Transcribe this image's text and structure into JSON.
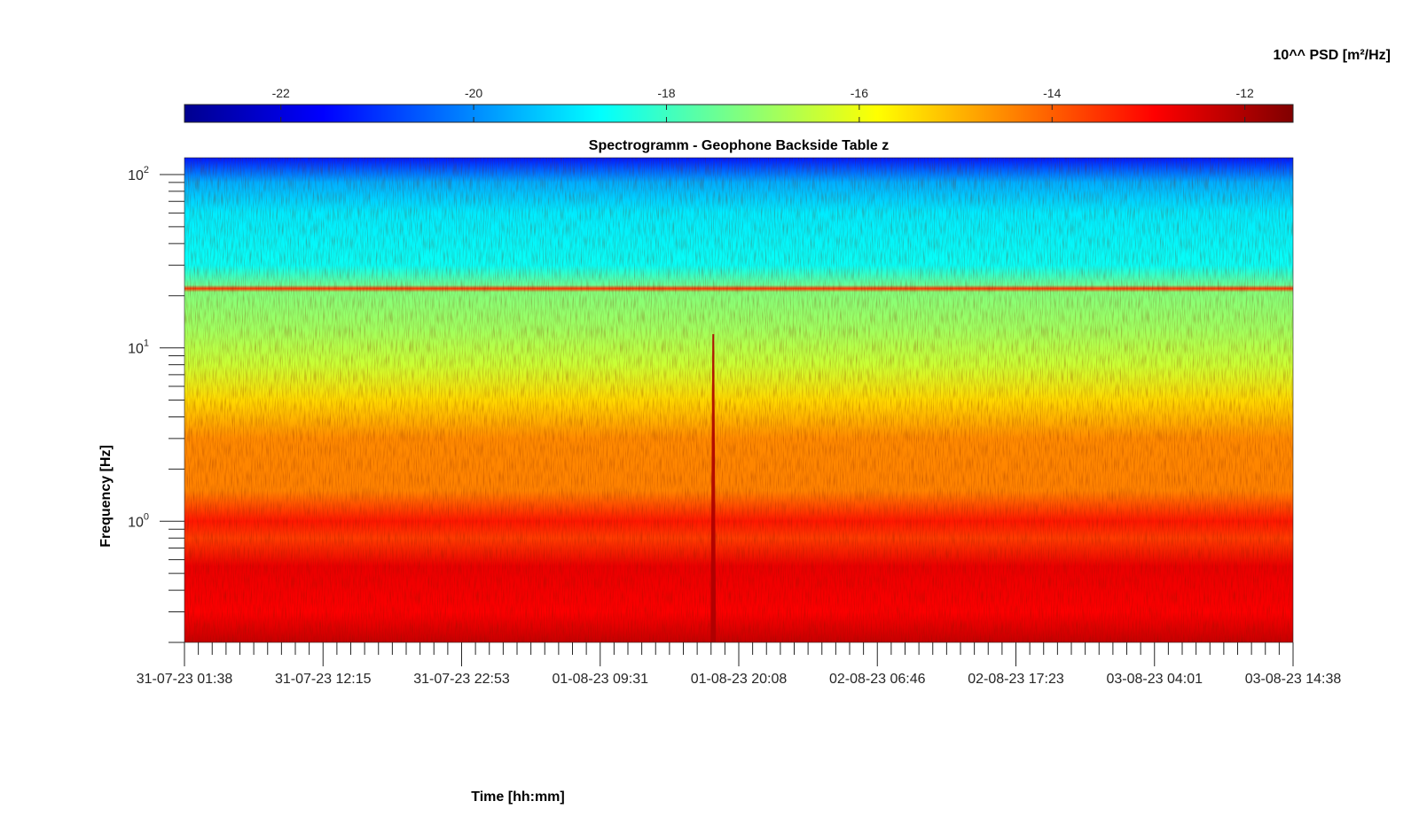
{
  "chart_data": {
    "type": "heatmap",
    "title": "Spectrogramm - Geophone Backside Table z",
    "xlabel": "Time [hh:mm]",
    "ylabel": "Frequency [Hz]",
    "colorbar_label": "10^^ PSD [m²/Hz]",
    "colormap": "jet",
    "y_scale": "log",
    "ylim": [
      0.2,
      125
    ],
    "clim": [
      -23,
      -11.5
    ],
    "x_ticks": [
      "31-07-23 01:38",
      "31-07-23 12:15",
      "31-07-23 22:53",
      "01-08-23 09:31",
      "01-08-23 20:08",
      "02-08-23 06:46",
      "02-08-23 17:23",
      "03-08-23 04:01",
      "03-08-23 14:38"
    ],
    "y_ticks": [
      {
        "value": 1,
        "base": "10",
        "exp": "0"
      },
      {
        "value": 10,
        "base": "10",
        "exp": "1"
      },
      {
        "value": 100,
        "base": "10",
        "exp": "2"
      }
    ],
    "colorbar_ticks": [
      {
        "value": -22,
        "label": "-22"
      },
      {
        "value": -20,
        "label": "-20"
      },
      {
        "value": -18,
        "label": "-18"
      },
      {
        "value": -16,
        "label": "-16"
      },
      {
        "value": -14,
        "label": "-14"
      },
      {
        "value": -12,
        "label": "-12"
      }
    ],
    "psd_profile": [
      {
        "freq": 0.2,
        "psd": -12.3
      },
      {
        "freq": 0.3,
        "psd": -12.9
      },
      {
        "freq": 0.55,
        "psd": -12.7
      },
      {
        "freq": 0.8,
        "psd": -13.6
      },
      {
        "freq": 1.0,
        "psd": -13.2
      },
      {
        "freq": 1.5,
        "psd": -14.4
      },
      {
        "freq": 3.0,
        "psd": -14.5
      },
      {
        "freq": 5.0,
        "psd": -15.4
      },
      {
        "freq": 8.0,
        "psd": -16.4
      },
      {
        "freq": 13.0,
        "psd": -16.9
      },
      {
        "freq": 21.0,
        "psd": -17.2
      },
      {
        "freq": 22.0,
        "psd": -13.5
      },
      {
        "freq": 23.0,
        "psd": -17.5
      },
      {
        "freq": 30.0,
        "psd": -18.6
      },
      {
        "freq": 60.0,
        "psd": -18.9
      },
      {
        "freq": 90.0,
        "psd": -19.6
      },
      {
        "freq": 125.0,
        "psd": -21.3
      }
    ],
    "events": [
      {
        "time_fraction": 0.477,
        "freq_min": 0.2,
        "freq_max": 12,
        "psd": -12.0
      }
    ]
  }
}
